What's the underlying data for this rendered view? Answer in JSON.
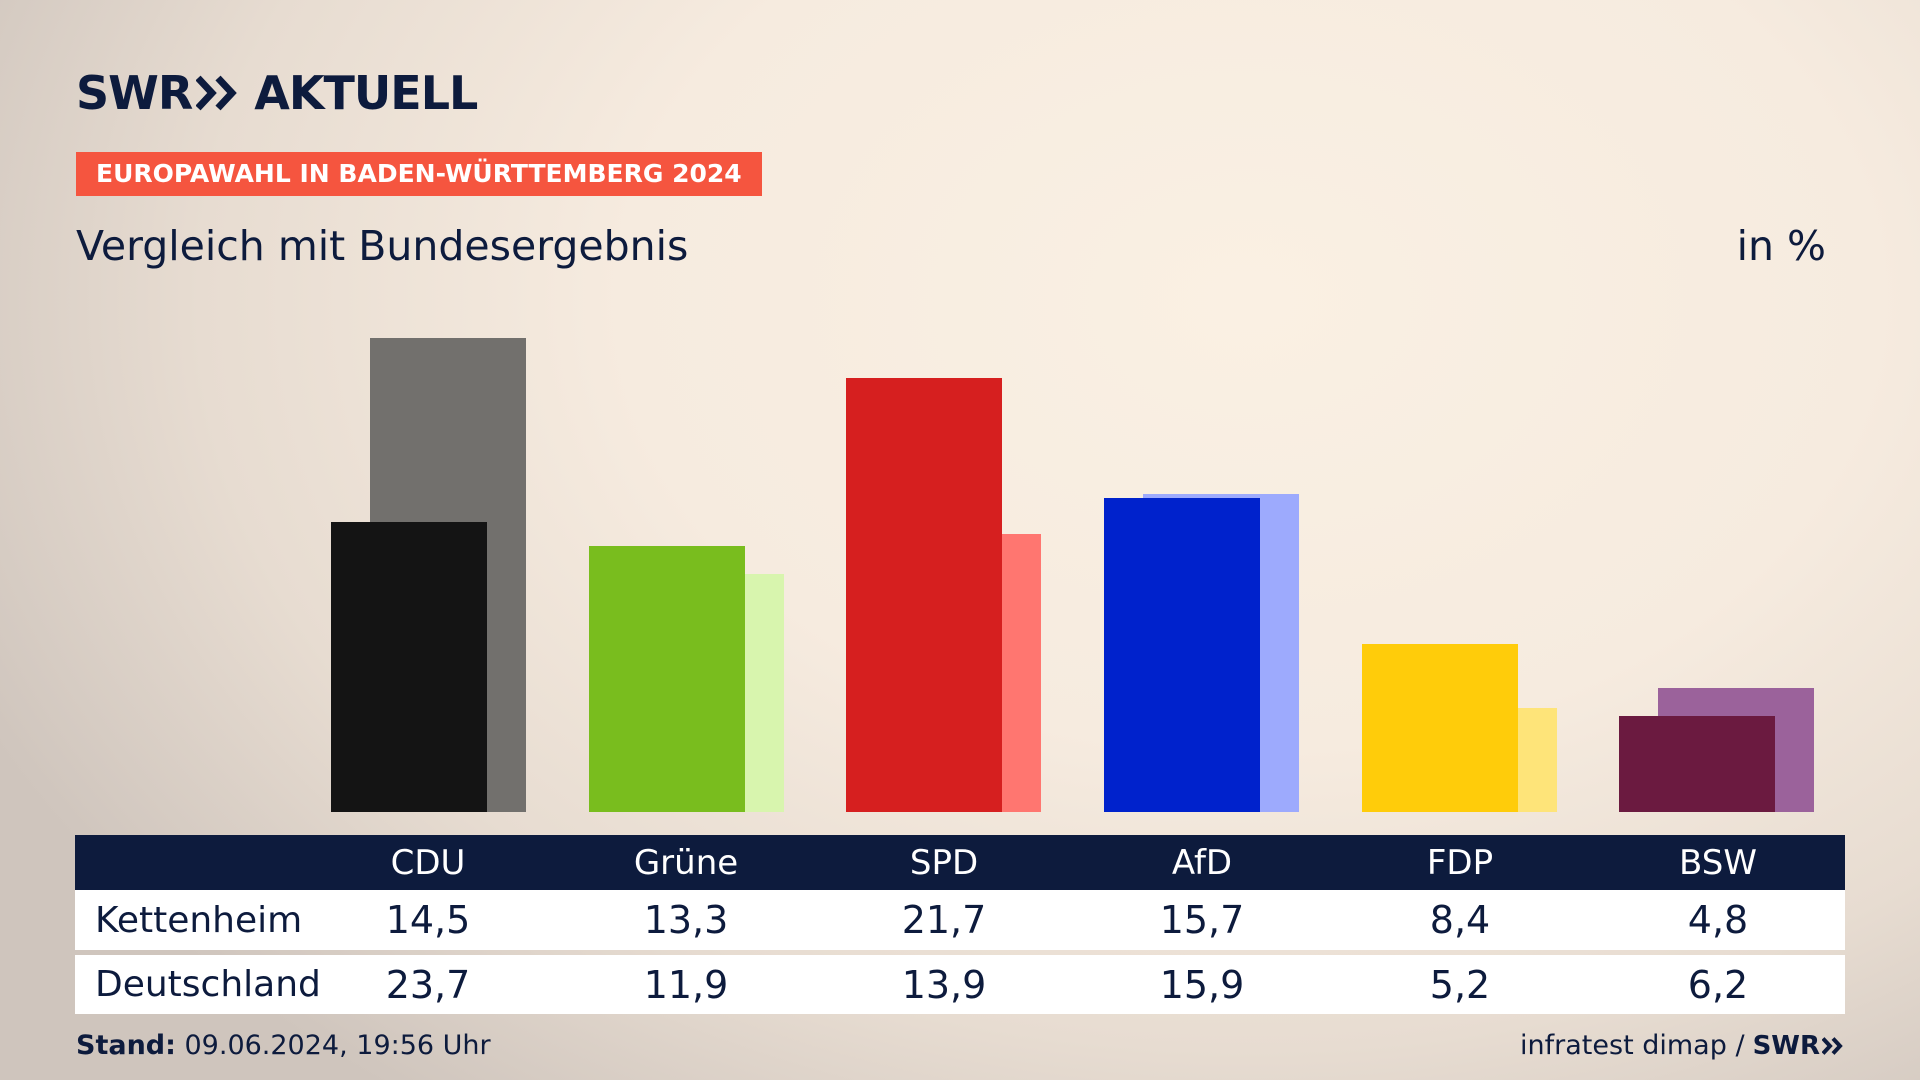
{
  "brand": {
    "swr": "SWR",
    "aktuell": "AKTUELL"
  },
  "header": {
    "tag": "EUROPAWAHL IN BADEN-WÜRTTEMBERG 2024",
    "subtitle": "Vergleich mit Bundesergebnis",
    "unit": "in %"
  },
  "footer": {
    "stand_label": "Stand:",
    "stand_value": " 09.06.2024, 19:56 Uhr",
    "source": "infratest dimap /",
    "swr": "SWR"
  },
  "colors": {
    "navy": "#0d1b3d",
    "tag_red": "#f5553f"
  },
  "chart_data": {
    "type": "bar",
    "title": "Vergleich mit Bundesergebnis",
    "unit": "in %",
    "categories": [
      "CDU",
      "Grüne",
      "SPD",
      "AfD",
      "FDP",
      "BSW"
    ],
    "series": [
      {
        "name": "Kettenheim",
        "values": [
          14.5,
          13.3,
          21.7,
          15.7,
          8.4,
          4.8
        ],
        "labels": [
          "14,5",
          "13,3",
          "21,7",
          "15,7",
          "8,4",
          "4,8"
        ],
        "colors": [
          "#141414",
          "#79bd1e",
          "#d61f1f",
          "#0022cc",
          "#ffcc0a",
          "#6b1a40"
        ]
      },
      {
        "name": "Deutschland",
        "values": [
          23.7,
          11.9,
          13.9,
          15.9,
          5.2,
          6.2
        ],
        "labels": [
          "23,7",
          "11,9",
          "13,9",
          "15,9",
          "5,2",
          "6,2"
        ],
        "colors": [
          "#72706d",
          "#d8f5ae",
          "#ff7670",
          "#9daafd",
          "#fee479",
          "#9b629b"
        ]
      }
    ],
    "ylim": [
      0,
      25
    ],
    "grid": false,
    "legend": "table-below"
  }
}
